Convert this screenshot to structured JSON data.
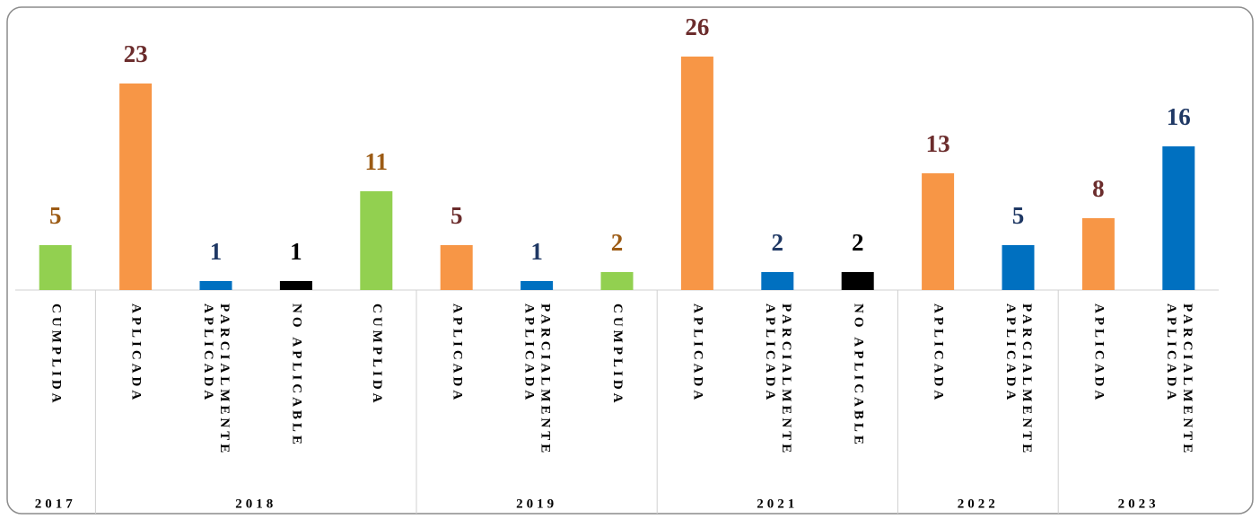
{
  "chart_data": {
    "type": "bar",
    "groups": [
      {
        "name": "2017",
        "categories": [
          [
            "CUMPLIDA"
          ]
        ],
        "values": [
          5
        ],
        "colors": [
          "#92d050"
        ],
        "label_colors": [
          "#9c5b14"
        ]
      },
      {
        "name": "2018",
        "categories": [
          [
            "APLICADA"
          ],
          [
            "PARCIALMENTE",
            "APLICADA"
          ],
          [
            "NO APLICABLE"
          ],
          [
            "CUMPLIDA"
          ]
        ],
        "values": [
          23,
          1,
          1,
          11
        ],
        "colors": [
          "#f79646",
          "#0070c0",
          "#000000",
          "#92d050"
        ],
        "label_colors": [
          "#6b2c2c",
          "#1f3864",
          "#000000",
          "#9c5b14"
        ]
      },
      {
        "name": "2019",
        "categories": [
          [
            "APLICADA"
          ],
          [
            "PARCIALMENTE",
            "APLICADA"
          ],
          [
            "CUMPLIDA"
          ]
        ],
        "values": [
          5,
          1,
          2
        ],
        "colors": [
          "#f79646",
          "#0070c0",
          "#92d050"
        ],
        "label_colors": [
          "#6b2c2c",
          "#1f3864",
          "#9c5b14"
        ]
      },
      {
        "name": "2021",
        "categories": [
          [
            "APLICADA"
          ],
          [
            "PARCIALMENTE",
            "APLICADA"
          ],
          [
            "NO APLICABLE"
          ]
        ],
        "values": [
          26,
          2,
          2
        ],
        "colors": [
          "#f79646",
          "#0070c0",
          "#000000"
        ],
        "label_colors": [
          "#6b2c2c",
          "#1f3864",
          "#000000"
        ]
      },
      {
        "name": "2022",
        "categories": [
          [
            "APLICADA"
          ],
          [
            "PARCIALMENTE",
            "APLICADA"
          ]
        ],
        "values": [
          13,
          5
        ],
        "colors": [
          "#f79646",
          "#0070c0"
        ],
        "label_colors": [
          "#6b2c2c",
          "#1f3864"
        ]
      },
      {
        "name": "2023",
        "categories": [
          [
            "APLICADA"
          ],
          [
            "PARCIALMENTE",
            "APLICADA"
          ]
        ],
        "values": [
          8,
          16
        ],
        "colors": [
          "#f79646",
          "#0070c0"
        ],
        "label_colors": [
          "#6b2c2c",
          "#1f3864"
        ]
      }
    ],
    "ylim": [
      0,
      26
    ]
  }
}
